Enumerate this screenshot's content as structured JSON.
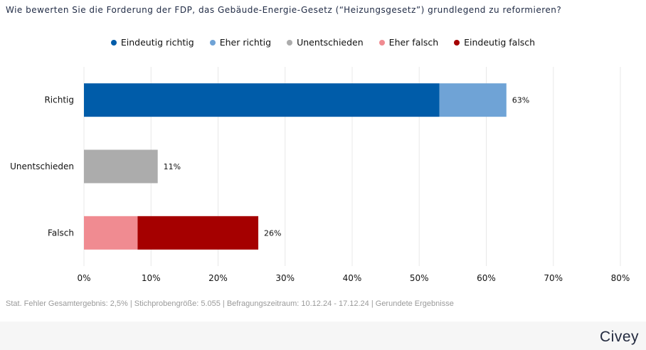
{
  "title": "Wie bewerten Sie die Forderung der FDP, das Gebäude-Energie-Gesetz (“Heizungsgesetz”) grundlegend zu reformieren?",
  "legend": [
    {
      "label": "Eindeutig richtig",
      "color": "#005ca9"
    },
    {
      "label": "Eher richtig",
      "color": "#6fa3d6"
    },
    {
      "label": "Unentschieden",
      "color": "#acacac"
    },
    {
      "label": "Eher falsch",
      "color": "#f08b91"
    },
    {
      "label": "Eindeutig falsch",
      "color": "#a50000"
    }
  ],
  "chart_data": {
    "type": "bar",
    "orientation": "horizontal",
    "stacked": true,
    "categories": [
      "Richtig",
      "Unentschieden",
      "Falsch"
    ],
    "series": [
      {
        "name": "Eindeutig richtig",
        "color": "#005ca9",
        "values": [
          53,
          0,
          0
        ]
      },
      {
        "name": "Eher richtig",
        "color": "#6fa3d6",
        "values": [
          10,
          0,
          0
        ]
      },
      {
        "name": "Unentschieden",
        "color": "#acacac",
        "values": [
          0,
          11,
          0
        ]
      },
      {
        "name": "Eher falsch",
        "color": "#f08b91",
        "values": [
          0,
          0,
          8
        ]
      },
      {
        "name": "Eindeutig falsch",
        "color": "#a50000",
        "values": [
          0,
          0,
          18
        ]
      }
    ],
    "totals": [
      "63%",
      "11%",
      "26%"
    ],
    "xlim": [
      0,
      80
    ],
    "xticks": [
      "0%",
      "10%",
      "20%",
      "30%",
      "40%",
      "50%",
      "60%",
      "70%",
      "80%"
    ],
    "grid": true,
    "legend_position": "top"
  },
  "footer": {
    "note": "Stat. Fehler Gesamtergebnis: 2,5%  | Stichprobengröße: 5.055  | Befragungszeitraum: 10.12.24 - 17.12.24  | Gerundete Ergebnisse",
    "brand": "Civey"
  }
}
